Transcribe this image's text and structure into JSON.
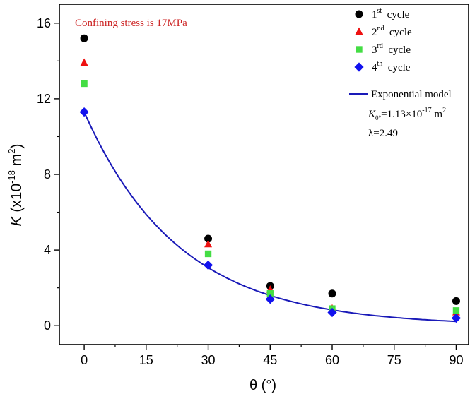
{
  "chart_data": {
    "type": "scatter",
    "annotation": "Confining stress is 17MPa",
    "annotation_color": "#cc2222",
    "xlabel": "θ (°)",
    "ylabel": {
      "symbol": "K",
      "text": " (x10",
      "exp": "-18",
      "unit": " m",
      "unit_exp": "2",
      "close": ")"
    },
    "xlim": [
      -6,
      93
    ],
    "ylim": [
      -1,
      17
    ],
    "xticks": [
      0,
      15,
      30,
      45,
      60,
      75,
      90
    ],
    "yticks": [
      0,
      4,
      8,
      12,
      16
    ],
    "grid": false,
    "legend_position": "top-right",
    "series": [
      {
        "name": {
          "base": "1",
          "sup": "st",
          "rest": "cycle"
        },
        "marker": "circle",
        "color": "#000000",
        "x": [
          0,
          30,
          45,
          60,
          90
        ],
        "y": [
          15.2,
          4.6,
          2.1,
          1.7,
          1.3
        ]
      },
      {
        "name": {
          "base": "2",
          "sup": "nd",
          "rest": "cycle"
        },
        "marker": "triangle",
        "color": "#ee1111",
        "x": [
          0,
          30,
          45,
          60,
          90
        ],
        "y": [
          13.9,
          4.3,
          1.9,
          0.9,
          0.7
        ]
      },
      {
        "name": {
          "base": "3",
          "sup": "rd",
          "rest": "cycle"
        },
        "marker": "square",
        "color": "#44dd44",
        "x": [
          0,
          30,
          45,
          60,
          90
        ],
        "y": [
          12.8,
          3.8,
          1.7,
          0.9,
          0.8
        ]
      },
      {
        "name": {
          "base": "4",
          "sup": "th",
          "rest": "cycle"
        },
        "marker": "diamond",
        "color": "#1111ee",
        "x": [
          0,
          30,
          45,
          60,
          90
        ],
        "y": [
          11.3,
          3.2,
          1.4,
          0.7,
          0.4
        ]
      }
    ],
    "model": {
      "name": "Exponential model",
      "color": "#1a1ab8",
      "params": [
        {
          "pre": "K",
          "sub": "0°",
          "mid": "=1.13×10",
          "sup": "-17",
          "post": " m",
          "post_sup": "2"
        },
        {
          "pre": "λ=2.49",
          "sub": "",
          "mid": "",
          "sup": "",
          "post": "",
          "post_sup": ""
        }
      ],
      "K0": 11.3,
      "lambda": 2.49,
      "x_range": [
        0,
        90
      ]
    }
  }
}
